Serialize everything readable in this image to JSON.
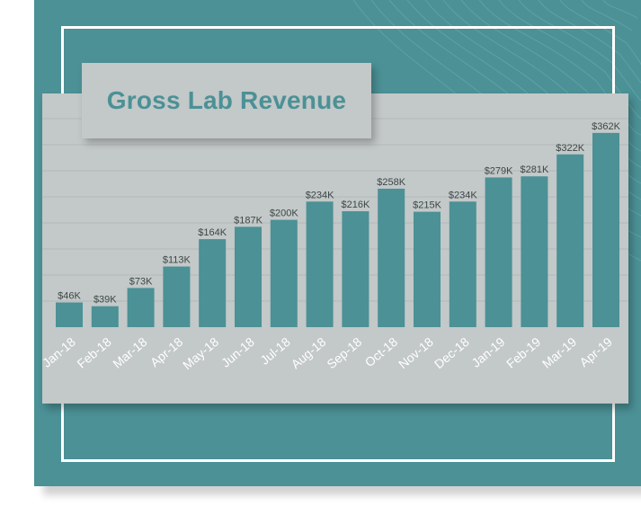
{
  "chart_data": {
    "type": "bar",
    "title": "Gross Lab Revenue",
    "categories": [
      "Jan-18",
      "Feb-18",
      "Mar-18",
      "Apr-18",
      "May-18",
      "Jun-18",
      "Jul-18",
      "Aug-18",
      "Sep-18",
      "Oct-18",
      "Nov-18",
      "Dec-18",
      "Jan-19",
      "Feb-19",
      "Mar-19",
      "Apr-19"
    ],
    "values": [
      46,
      39,
      73,
      113,
      164,
      187,
      200,
      234,
      216,
      258,
      215,
      234,
      279,
      281,
      322,
      362
    ],
    "value_labels": [
      "$46K",
      "$39K",
      "$73K",
      "$113K",
      "$164K",
      "$187K",
      "$200K",
      "$234K",
      "$216K",
      "$258K",
      "$215K",
      "$234K",
      "$279K",
      "$281K",
      "$322K",
      "$362K"
    ],
    "unit": "$K",
    "ylim": [
      0,
      400
    ],
    "grid": true,
    "colors": {
      "bar": "#4b9196",
      "panel": "#c3c8c8",
      "background": "#4b9196",
      "title": "#4b9196"
    }
  }
}
